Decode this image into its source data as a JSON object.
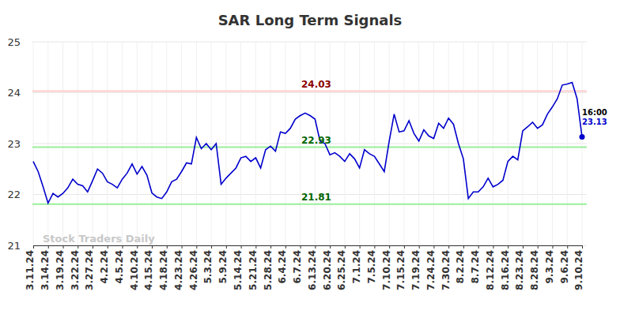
{
  "chart_data": {
    "type": "line",
    "title": "SAR Long Term Signals",
    "categories": [
      "3.11.24",
      null,
      null,
      "3.14.24",
      null,
      null,
      "3.19.24",
      null,
      null,
      "3.22.24",
      null,
      null,
      "3.27.24",
      null,
      null,
      "4.2.24",
      null,
      null,
      "4.5.24",
      null,
      null,
      "4.10.24",
      null,
      null,
      "4.15.24",
      null,
      null,
      "4.18.24",
      null,
      null,
      "4.23.24",
      null,
      null,
      "4.26.24",
      null,
      null,
      "5.3.24",
      null,
      null,
      "5.9.24",
      null,
      null,
      "5.14.24",
      null,
      null,
      "5.21.24",
      null,
      null,
      "5.28.24",
      null,
      null,
      "6.4.24",
      null,
      null,
      "6.7.24",
      null,
      null,
      "6.13.24",
      null,
      null,
      "6.20.24",
      null,
      null,
      "6.25.24",
      null,
      null,
      "7.1.24",
      null,
      null,
      "7.5.24",
      null,
      null,
      "7.10.24",
      null,
      null,
      "7.15.24",
      null,
      null,
      "7.19.24",
      null,
      null,
      "7.24.24",
      null,
      null,
      "7.30.24",
      null,
      null,
      "8.2.24",
      null,
      null,
      "8.7.24",
      null,
      null,
      "8.12.24",
      null,
      null,
      "8.16.24",
      null,
      null,
      "8.23.24",
      null,
      null,
      "8.28.24",
      null,
      null,
      "9.3.24",
      null,
      null,
      "9.6.24",
      null,
      null,
      "9.10.24"
    ],
    "values": [
      22.65,
      22.45,
      22.15,
      21.83,
      22.02,
      21.95,
      22.02,
      22.13,
      22.3,
      22.2,
      22.17,
      22.05,
      22.27,
      22.5,
      22.42,
      22.25,
      22.2,
      22.13,
      22.3,
      22.42,
      22.6,
      22.4,
      22.55,
      22.38,
      22.03,
      21.95,
      21.92,
      22.05,
      22.25,
      22.3,
      22.45,
      22.62,
      22.6,
      23.12,
      22.9,
      23.0,
      22.88,
      23.0,
      22.2,
      22.32,
      22.42,
      22.52,
      22.72,
      22.75,
      22.65,
      22.72,
      22.52,
      22.88,
      22.95,
      22.85,
      23.23,
      23.2,
      23.3,
      23.48,
      23.55,
      23.6,
      23.55,
      23.48,
      23.05,
      23.0,
      22.78,
      22.82,
      22.75,
      22.65,
      22.8,
      22.7,
      22.52,
      22.88,
      22.8,
      22.75,
      22.6,
      22.45,
      23.05,
      23.58,
      23.23,
      23.25,
      23.45,
      23.2,
      23.05,
      23.27,
      23.15,
      23.1,
      23.4,
      23.3,
      23.5,
      23.38,
      23.0,
      22.7,
      21.92,
      22.05,
      22.05,
      22.15,
      22.32,
      22.15,
      22.2,
      22.28,
      22.65,
      22.75,
      22.68,
      23.25,
      23.33,
      23.42,
      23.3,
      23.37,
      23.58,
      23.72,
      23.88,
      24.15,
      24.17,
      24.2,
      23.88,
      23.13
    ],
    "color": "#0000cc",
    "ylim": [
      21,
      25
    ],
    "yticks": [
      21,
      22,
      23,
      24,
      25
    ],
    "grid": true,
    "levels": [
      {
        "value": 24.03,
        "color": "#ffcccc"
      },
      {
        "value": 22.93,
        "color": "#99ee99"
      },
      {
        "value": 21.81,
        "color": "#99ee99"
      }
    ],
    "last_label": {
      "time": "16:00",
      "value": 23.13
    },
    "watermark": "Stock Traders Daily"
  }
}
